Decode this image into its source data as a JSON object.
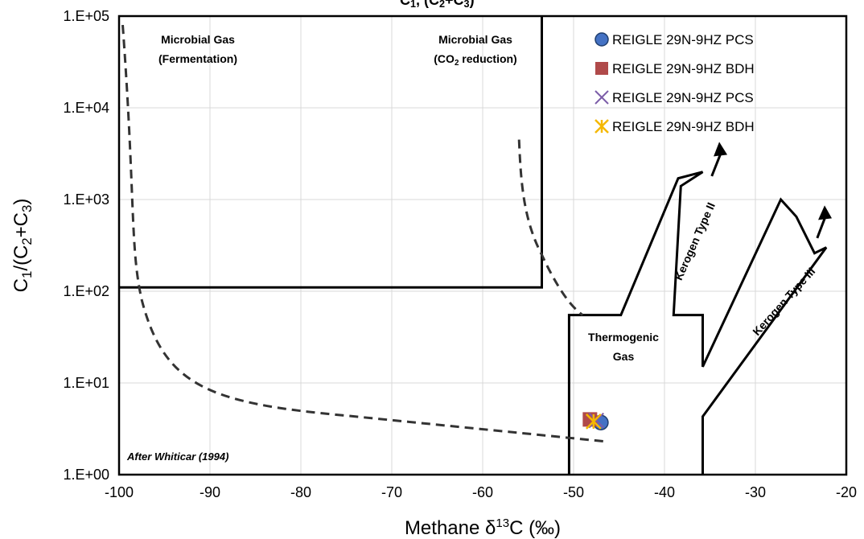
{
  "chart_data": {
    "type": "scatter",
    "title_visible_fragment": "1, (C2+C3)",
    "xlabel": "Methane δ13C (‰)",
    "ylabel": "C1/(C2+C3)",
    "xlim": [
      -100,
      -20
    ],
    "ylim": [
      1,
      100000
    ],
    "y_scale": "log",
    "grid": true,
    "legend_position": "top-right",
    "x_ticks": [
      "-100",
      "-90",
      "-80",
      "-70",
      "-60",
      "-50",
      "-40",
      "-30",
      "-20"
    ],
    "y_ticks": [
      "1.E+00",
      "1.E+01",
      "1.E+02",
      "1.E+03",
      "1.E+04",
      "1.E+05"
    ],
    "series": [
      {
        "name": "REIGLE 29N-9HZ PCS",
        "marker": "circle",
        "color": "#4472C4",
        "points": [
          {
            "x": -47.0,
            "y": 3.7
          }
        ]
      },
      {
        "name": "REIGLE 29N-9HZ BDH",
        "marker": "square",
        "color": "#B04A4A",
        "points": [
          {
            "x": -48.2,
            "y": 4.0
          }
        ]
      },
      {
        "name": "REIGLE 29N-9HZ PCS",
        "marker": "x",
        "color": "#7B5CA8",
        "points": [
          {
            "x": -47.5,
            "y": 3.9
          }
        ]
      },
      {
        "name": "REIGLE 29N-9HZ BDH",
        "marker": "asterisk",
        "color": "#F5B800",
        "points": [
          {
            "x": -47.8,
            "y": 3.8
          }
        ]
      }
    ],
    "regions": {
      "microbial_fermentation": [
        "Microbial Gas",
        "(Fermentation)"
      ],
      "microbial_co2": [
        "Microbial Gas",
        "(CO",
        "2",
        " reduction)"
      ],
      "thermogenic": [
        "Thermogenic",
        "Gas"
      ],
      "kerogen_2": "Kerogen Type II",
      "kerogen_3": "Kerogen Type III"
    },
    "citation": "After Whiticar (1994)"
  }
}
